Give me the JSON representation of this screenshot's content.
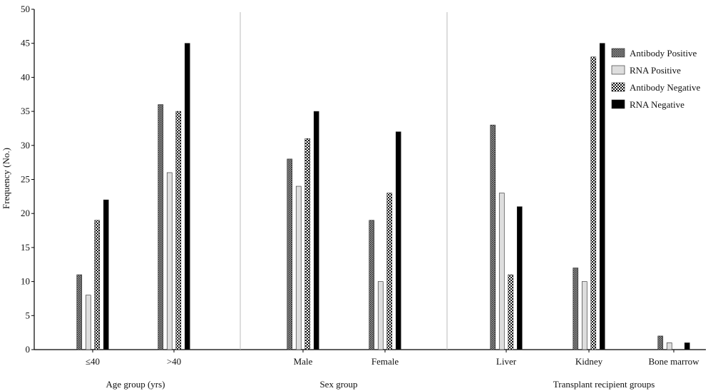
{
  "chart_data": {
    "type": "bar",
    "ylabel": "Frequency (No.)",
    "ylim": [
      0,
      50
    ],
    "yticks": [
      0,
      5,
      10,
      15,
      20,
      25,
      30,
      35,
      40,
      45,
      50
    ],
    "categories": [
      "≤40",
      ">40",
      "Male",
      "Female",
      "Liver",
      "Kidney",
      "Bone marrow"
    ],
    "groups": [
      {
        "label": "Age group (yrs)",
        "categories": [
          "≤40",
          ">40"
        ]
      },
      {
        "label": "Sex group",
        "categories": [
          "Male",
          "Female"
        ]
      },
      {
        "label": "Transplant recipient groups",
        "categories": [
          "Liver",
          "Kidney",
          "Bone marrow"
        ]
      }
    ],
    "series": [
      {
        "name": "Antibody Positive",
        "pattern": "dense-dots",
        "values": [
          11,
          36,
          28,
          19,
          33,
          12,
          2
        ]
      },
      {
        "name": "RNA Positive",
        "pattern": "light-gray",
        "values": [
          8,
          26,
          24,
          10,
          23,
          10,
          1
        ]
      },
      {
        "name": "Antibody Negative",
        "pattern": "checker",
        "values": [
          19,
          35,
          31,
          23,
          11,
          43,
          0
        ]
      },
      {
        "name": "RNA Negative",
        "pattern": "solid-black",
        "values": [
          22,
          45,
          35,
          32,
          21,
          45,
          1
        ]
      }
    ],
    "legend_position": "top-right",
    "grid": false
  }
}
